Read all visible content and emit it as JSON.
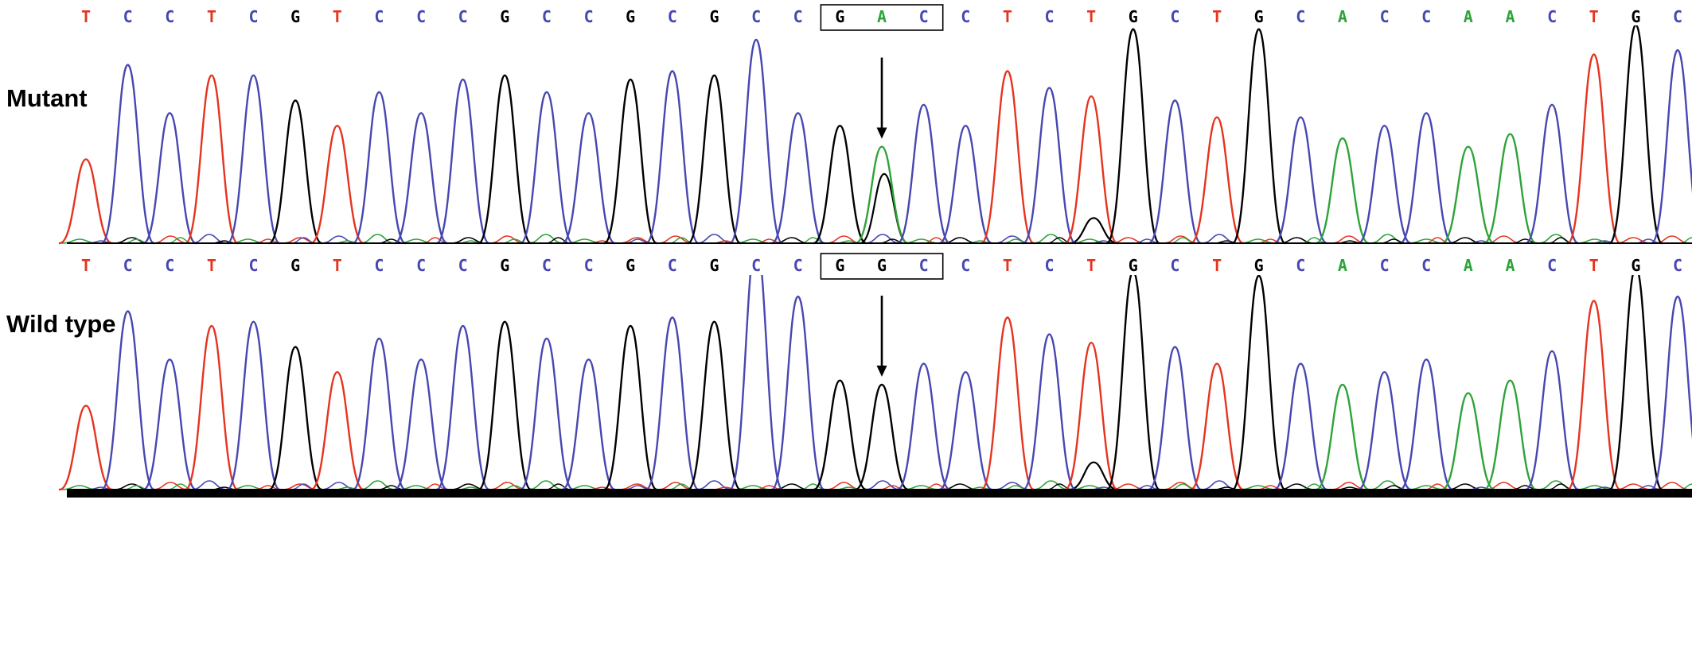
{
  "background": "#ffffff",
  "base_colors": {
    "A": "#2ea339",
    "C": "#4747b2",
    "G": "#000000",
    "T": "#e5341f"
  },
  "annotation_color": "#000000",
  "chart_data": [
    {
      "type": "line",
      "subtype": "sanger_chromatogram",
      "title": "Mutant",
      "bases": [
        "T",
        "C",
        "C",
        "T",
        "C",
        "G",
        "T",
        "C",
        "C",
        "C",
        "G",
        "C",
        "C",
        "G",
        "C",
        "G",
        "C",
        "C",
        "G",
        "A",
        "C",
        "C",
        "T",
        "C",
        "T",
        "G",
        "C",
        "T",
        "G",
        "C",
        "A",
        "C",
        "C",
        "A",
        "A",
        "C",
        "T",
        "G",
        "C"
      ],
      "peak_heights": [
        0.4,
        0.85,
        0.62,
        0.8,
        0.8,
        0.68,
        0.56,
        0.72,
        0.62,
        0.78,
        0.8,
        0.72,
        0.62,
        0.78,
        0.82,
        0.8,
        0.97,
        0.62,
        0.56,
        0.46,
        0.66,
        0.56,
        0.82,
        0.74,
        0.7,
        1.02,
        0.68,
        0.6,
        1.02,
        0.6,
        0.5,
        0.56,
        0.62,
        0.46,
        0.52,
        0.66,
        0.9,
        1.04,
        0.92
      ],
      "secondary_peaks": [
        {
          "index": 19,
          "base": "G",
          "height": 0.33
        },
        {
          "index": 24,
          "base": "G",
          "height": 0.12
        }
      ],
      "boxed_bases": {
        "start_index": 18,
        "end_index": 20,
        "bases": [
          "G",
          "A",
          "C"
        ],
        "label": "GAC"
      },
      "arrow_at_index": 19,
      "ylim": [
        0,
        1.2
      ],
      "grid": false,
      "legend": false
    },
    {
      "type": "line",
      "subtype": "sanger_chromatogram",
      "title": "Wild type",
      "bases": [
        "T",
        "C",
        "C",
        "T",
        "C",
        "G",
        "T",
        "C",
        "C",
        "C",
        "G",
        "C",
        "C",
        "G",
        "C",
        "G",
        "C",
        "C",
        "G",
        "G",
        "C",
        "C",
        "T",
        "C",
        "T",
        "G",
        "C",
        "T",
        "G",
        "C",
        "A",
        "C",
        "C",
        "A",
        "A",
        "C",
        "T",
        "G",
        "C"
      ],
      "peak_heights": [
        0.4,
        0.85,
        0.62,
        0.78,
        0.8,
        0.68,
        0.56,
        0.72,
        0.62,
        0.78,
        0.8,
        0.72,
        0.62,
        0.78,
        0.82,
        0.8,
        1.18,
        0.92,
        0.52,
        0.5,
        0.6,
        0.56,
        0.82,
        0.74,
        0.7,
        1.04,
        0.68,
        0.6,
        1.02,
        0.6,
        0.5,
        0.56,
        0.62,
        0.46,
        0.52,
        0.66,
        0.9,
        1.06,
        0.92
      ],
      "secondary_peaks": [
        {
          "index": 24,
          "base": "G",
          "height": 0.13
        }
      ],
      "boxed_bases": {
        "start_index": 18,
        "end_index": 20,
        "bases": [
          "G",
          "G",
          "C"
        ],
        "label": "GGC"
      },
      "arrow_at_index": 19,
      "ylim": [
        0,
        1.2
      ],
      "grid": false,
      "legend": false
    }
  ]
}
